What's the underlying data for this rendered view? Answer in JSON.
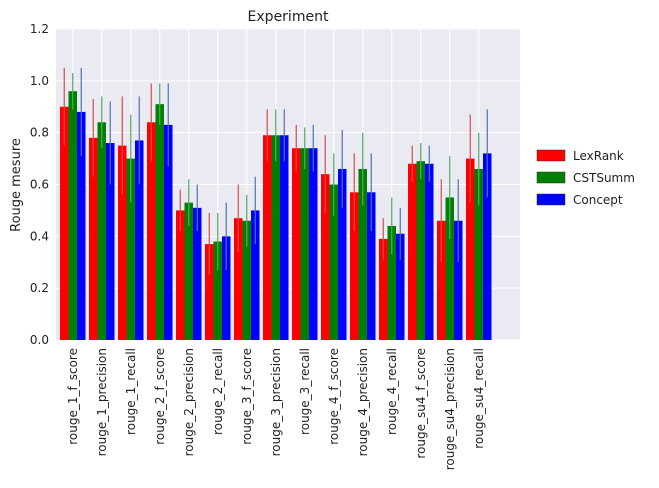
{
  "chart_data": {
    "type": "bar",
    "title": "Experiment",
    "xlabel": "",
    "ylabel": "Rouge mesure",
    "ylim": [
      0,
      1.2
    ],
    "yticks": [
      "0.0",
      "0.2",
      "0.4",
      "0.6",
      "0.8",
      "1.0",
      "1.2"
    ],
    "grid": true,
    "legend_position": "right",
    "categories": [
      "rouge_1_f_score",
      "rouge_1_precision",
      "rouge_1_recall",
      "rouge_2_f_score",
      "rouge_2_precision",
      "rouge_2_recall",
      "rouge_3_f_score",
      "rouge_3_precision",
      "rouge_3_recall",
      "rouge_4_f_score",
      "rouge_4_precision",
      "rouge_4_recall",
      "rouge_su4_f_score",
      "rouge_su4_precision",
      "rouge_su4_recall"
    ],
    "series": [
      {
        "name": "LexRank",
        "color": "#ff0000",
        "error_color": "#d94a4a",
        "values": [
          0.9,
          0.78,
          0.75,
          0.84,
          0.5,
          0.37,
          0.47,
          0.79,
          0.74,
          0.64,
          0.57,
          0.39,
          0.68,
          0.46,
          0.7
        ],
        "errors": [
          0.15,
          0.15,
          0.19,
          0.15,
          0.08,
          0.12,
          0.13,
          0.1,
          0.09,
          0.15,
          0.15,
          0.08,
          0.07,
          0.16,
          0.17
        ]
      },
      {
        "name": "CSTSumm",
        "color": "#008000",
        "error_color": "#55a868",
        "values": [
          0.96,
          0.84,
          0.7,
          0.91,
          0.53,
          0.38,
          0.46,
          0.79,
          0.74,
          0.6,
          0.66,
          0.44,
          0.69,
          0.55,
          0.66
        ],
        "errors": [
          0.07,
          0.1,
          0.17,
          0.08,
          0.09,
          0.11,
          0.1,
          0.1,
          0.08,
          0.12,
          0.14,
          0.11,
          0.07,
          0.16,
          0.14
        ]
      },
      {
        "name": "Concept",
        "color": "#0000ff",
        "error_color": "#4c72b0",
        "values": [
          0.88,
          0.76,
          0.77,
          0.83,
          0.51,
          0.4,
          0.5,
          0.79,
          0.74,
          0.66,
          0.57,
          0.41,
          0.68,
          0.46,
          0.72
        ],
        "errors": [
          0.17,
          0.16,
          0.17,
          0.16,
          0.09,
          0.13,
          0.13,
          0.1,
          0.09,
          0.15,
          0.15,
          0.1,
          0.07,
          0.16,
          0.17
        ]
      }
    ]
  }
}
